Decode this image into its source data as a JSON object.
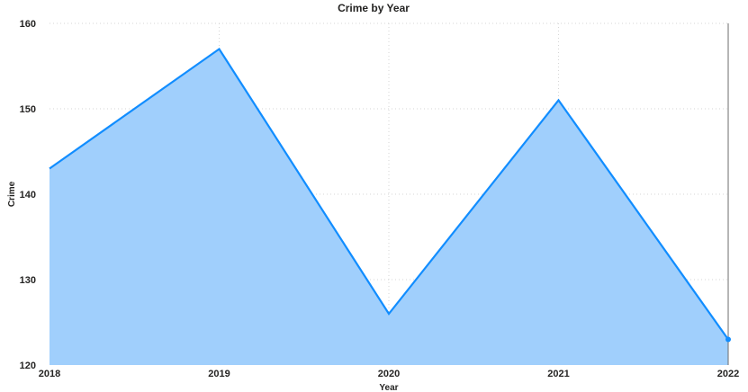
{
  "chart_data": {
    "type": "area",
    "title": "Crime by Year",
    "xlabel": "Year",
    "ylabel": "Crime",
    "x": [
      "2018",
      "2019",
      "2020",
      "2021",
      "2022"
    ],
    "series": [
      {
        "values": [
          143,
          157,
          126,
          151,
          123
        ]
      }
    ],
    "ylim": [
      120,
      160
    ],
    "yticks": [
      120,
      130,
      140,
      150,
      160
    ],
    "grid": true,
    "legend": "none",
    "colors": {
      "fill": "#a0cffc",
      "line": "#118dff",
      "cursor": "#6e6e6e"
    }
  }
}
